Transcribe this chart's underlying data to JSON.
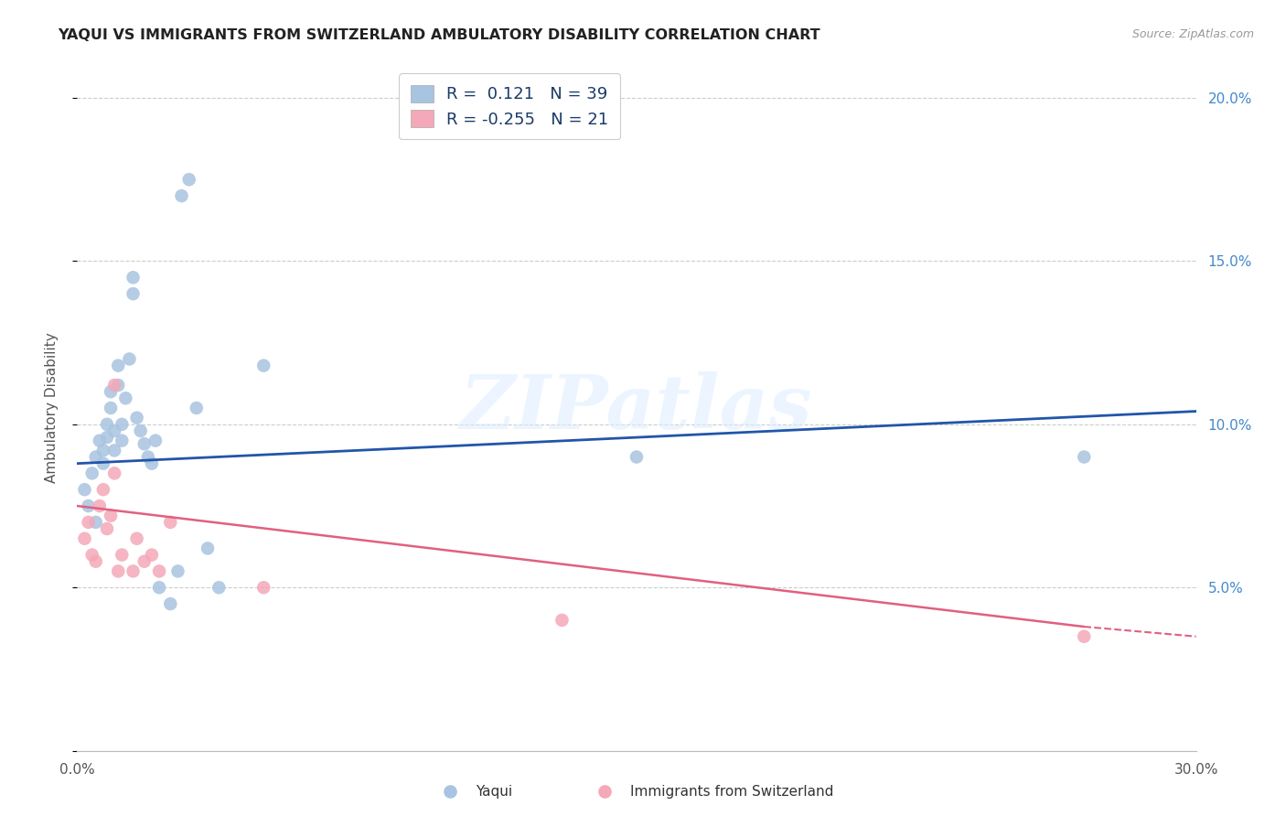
{
  "title": "YAQUI VS IMMIGRANTS FROM SWITZERLAND AMBULATORY DISABILITY CORRELATION CHART",
  "source": "Source: ZipAtlas.com",
  "ylabel": "Ambulatory Disability",
  "xlim": [
    0.0,
    0.3
  ],
  "ylim": [
    0.0,
    0.21
  ],
  "y_ticks": [
    0.0,
    0.05,
    0.1,
    0.15,
    0.2
  ],
  "y_tick_labels_right": [
    "",
    "5.0%",
    "10.0%",
    "15.0%",
    "20.0%"
  ],
  "x_tick_positions": [
    0.0,
    0.05,
    0.1,
    0.15,
    0.2,
    0.25,
    0.3
  ],
  "x_tick_labels": [
    "0.0%",
    "",
    "",
    "",
    "",
    "",
    "30.0%"
  ],
  "blue_R": 0.121,
  "blue_N": 39,
  "pink_R": -0.255,
  "pink_N": 21,
  "blue_color": "#a8c4e0",
  "pink_color": "#f4a8b8",
  "blue_line_color": "#2255aa",
  "pink_line_color": "#e06080",
  "watermark": "ZIPatlas",
  "blue_points_x": [
    0.002,
    0.003,
    0.004,
    0.005,
    0.005,
    0.006,
    0.007,
    0.007,
    0.008,
    0.008,
    0.009,
    0.009,
    0.01,
    0.01,
    0.011,
    0.011,
    0.012,
    0.012,
    0.013,
    0.014,
    0.015,
    0.015,
    0.016,
    0.017,
    0.018,
    0.019,
    0.02,
    0.021,
    0.022,
    0.025,
    0.027,
    0.028,
    0.03,
    0.032,
    0.035,
    0.038,
    0.05,
    0.15,
    0.27
  ],
  "blue_points_y": [
    0.08,
    0.075,
    0.085,
    0.07,
    0.09,
    0.095,
    0.088,
    0.092,
    0.096,
    0.1,
    0.105,
    0.11,
    0.092,
    0.098,
    0.112,
    0.118,
    0.095,
    0.1,
    0.108,
    0.12,
    0.14,
    0.145,
    0.102,
    0.098,
    0.094,
    0.09,
    0.088,
    0.095,
    0.05,
    0.045,
    0.055,
    0.17,
    0.175,
    0.105,
    0.062,
    0.05,
    0.118,
    0.09,
    0.09
  ],
  "pink_points_x": [
    0.002,
    0.003,
    0.004,
    0.005,
    0.006,
    0.007,
    0.008,
    0.009,
    0.01,
    0.01,
    0.011,
    0.012,
    0.015,
    0.016,
    0.018,
    0.02,
    0.022,
    0.025,
    0.05,
    0.13,
    0.27
  ],
  "pink_points_y": [
    0.065,
    0.07,
    0.06,
    0.058,
    0.075,
    0.08,
    0.068,
    0.072,
    0.085,
    0.112,
    0.055,
    0.06,
    0.055,
    0.065,
    0.058,
    0.06,
    0.055,
    0.07,
    0.05,
    0.04,
    0.035
  ],
  "blue_line_x0": 0.0,
  "blue_line_y0": 0.088,
  "blue_line_x1": 0.3,
  "blue_line_y1": 0.104,
  "pink_line_x0": 0.0,
  "pink_line_y0": 0.075,
  "pink_line_x1": 0.3,
  "pink_line_y1": 0.035
}
